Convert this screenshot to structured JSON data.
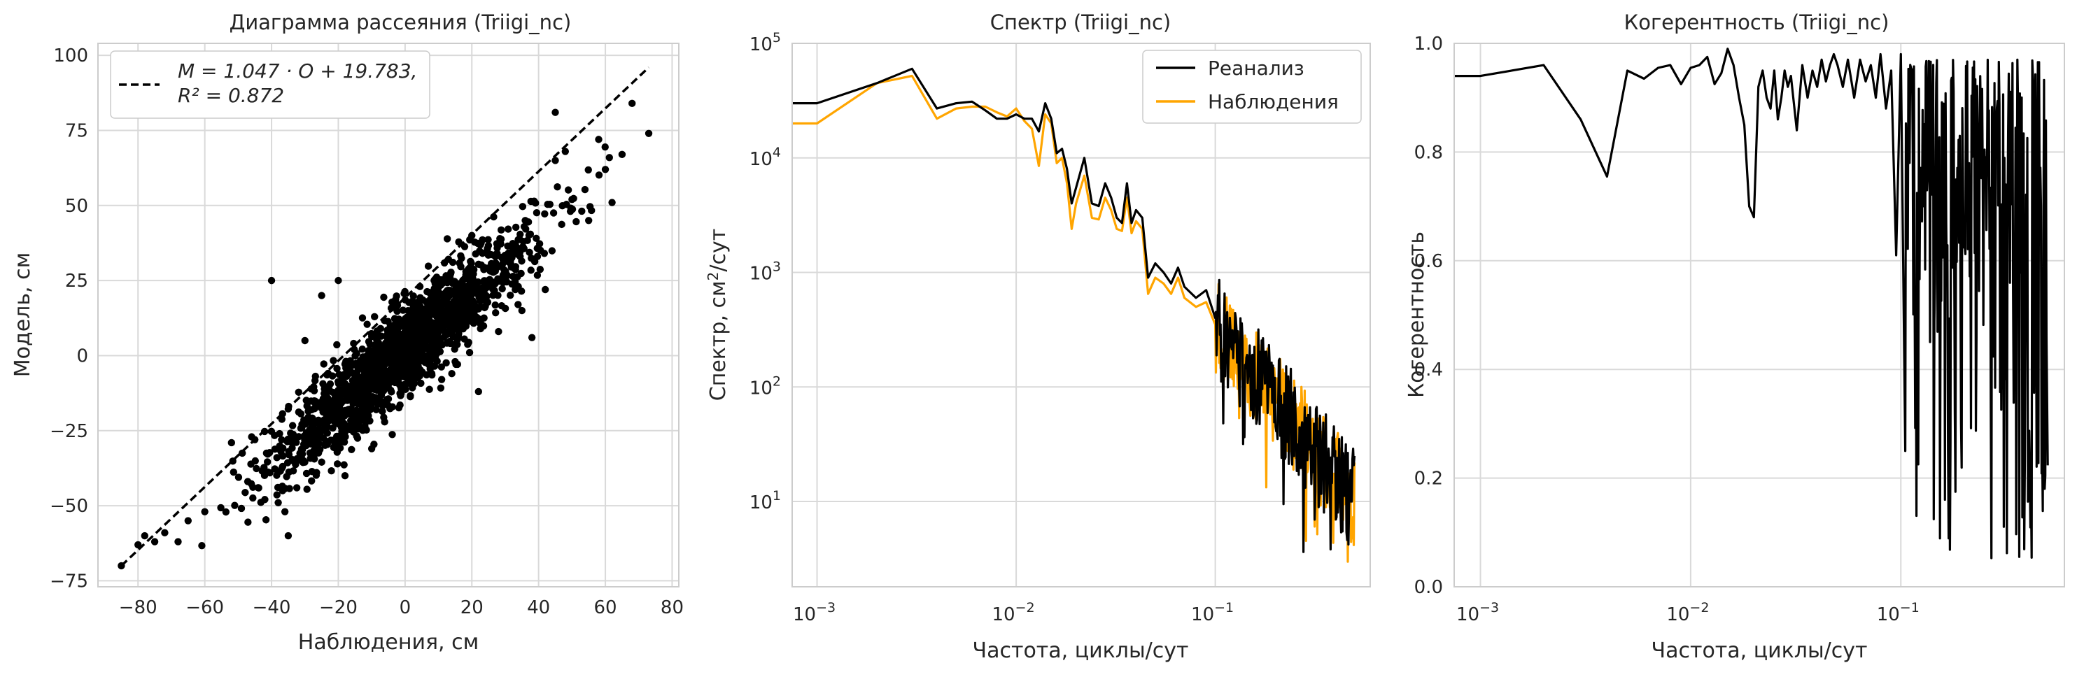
{
  "colors": {
    "model": "#000000",
    "observations": "#FFA500",
    "grid": "#D9D9D9",
    "spine": "#CCCCCC",
    "text": "#262626"
  },
  "chart_data": [
    {
      "type": "scatter",
      "title": "Диаграмма рассеяния (Triigi_nc)",
      "xlabel": "Наблюдения, см",
      "ylabel": "Модель, см",
      "xlim": [
        -92,
        82
      ],
      "ylim": [
        -77,
        104
      ],
      "xticks": [
        "−80",
        "−60",
        "−40",
        "−20",
        "0",
        "20",
        "40",
        "60",
        "80"
      ],
      "yticks": [
        "−75",
        "−50",
        "−25",
        "0",
        "25",
        "50",
        "75",
        "100"
      ],
      "grid": true,
      "legend": {
        "position": "top-left",
        "line1": "M = 1.047 · O + 19.783,",
        "line2": "R² = 0.872"
      },
      "fit": {
        "slope": 1.047,
        "intercept": 19.783,
        "r2": 0.872,
        "x_range": [
          -85,
          73
        ]
      },
      "point_model": {
        "count": 1800,
        "residual_sd": 7.5,
        "x_center": 0,
        "x_sd": 19
      },
      "points": [
        [
          -85,
          -70
        ],
        [
          -80,
          -63
        ],
        [
          -78,
          -60
        ],
        [
          -75,
          -62
        ],
        [
          -72,
          -59
        ],
        [
          -68,
          -62
        ],
        [
          -65,
          -55
        ],
        [
          -60,
          -52
        ],
        [
          -52,
          -29
        ],
        [
          -45,
          -28
        ],
        [
          -44,
          -44
        ],
        [
          -40,
          25
        ],
        [
          -38,
          -49
        ],
        [
          -36,
          -52
        ],
        [
          -35,
          -60
        ],
        [
          -30,
          5
        ],
        [
          -28,
          -24
        ],
        [
          -25,
          20
        ],
        [
          -20,
          25
        ],
        [
          -18,
          -40
        ],
        [
          -10,
          -31
        ],
        [
          0,
          8
        ],
        [
          8,
          -6
        ],
        [
          14,
          -6
        ],
        [
          15,
          -2
        ],
        [
          18,
          23
        ],
        [
          20,
          40
        ],
        [
          22,
          -12
        ],
        [
          28,
          8
        ],
        [
          35,
          15
        ],
        [
          36,
          45
        ],
        [
          38,
          6
        ],
        [
          45,
          81
        ],
        [
          42,
          22
        ],
        [
          45,
          65
        ],
        [
          48,
          68
        ],
        [
          50,
          52
        ],
        [
          55,
          45
        ],
        [
          58,
          72
        ],
        [
          60,
          62
        ],
        [
          62,
          51
        ],
        [
          65,
          67
        ],
        [
          68,
          84
        ],
        [
          73,
          74
        ]
      ]
    },
    {
      "type": "line",
      "title": "Спектр (Triigi_nc)",
      "xlabel": "Частота, циклы/сут",
      "ylabel": "Спектр, см²/сут",
      "xscale": "log",
      "yscale": "log",
      "xlim": [
        0.00075,
        0.6
      ],
      "ylim": [
        1.8,
        100000
      ],
      "xticks": [
        {
          "base": "10",
          "exp": "−3",
          "value": 0.001
        },
        {
          "base": "10",
          "exp": "−2",
          "value": 0.01
        },
        {
          "base": "10",
          "exp": "−1",
          "value": 0.1
        }
      ],
      "yticks": [
        {
          "base": "10",
          "exp": "1",
          "value": 10
        },
        {
          "base": "10",
          "exp": "2",
          "value": 100
        },
        {
          "base": "10",
          "exp": "3",
          "value": 1000
        },
        {
          "base": "10",
          "exp": "4",
          "value": 10000
        },
        {
          "base": "10",
          "exp": "5",
          "value": 100000
        }
      ],
      "grid": true,
      "legend": {
        "position": "top-right"
      },
      "series": [
        {
          "name": "Реанализ",
          "color": "#000000",
          "x": [
            0.00075,
            0.001,
            0.002,
            0.003,
            0.004,
            0.005,
            0.006,
            0.007,
            0.008,
            0.009,
            0.01,
            0.011,
            0.012,
            0.013,
            0.014,
            0.015,
            0.016,
            0.017,
            0.018,
            0.019,
            0.02,
            0.022,
            0.024,
            0.026,
            0.028,
            0.03,
            0.032,
            0.034,
            0.036,
            0.038,
            0.04,
            0.043,
            0.046,
            0.05,
            0.055,
            0.06,
            0.065,
            0.07,
            0.08,
            0.09,
            0.1
          ],
          "y": [
            30000,
            30000,
            45000,
            60000,
            27000,
            30000,
            31000,
            26000,
            22000,
            22000,
            24000,
            22000,
            22000,
            17000,
            30000,
            22000,
            11000,
            12000,
            8000,
            4000,
            5500,
            10000,
            4000,
            3800,
            6000,
            4500,
            3000,
            2700,
            6000,
            2700,
            3500,
            3000,
            900,
            1200,
            1000,
            800,
            1100,
            750,
            600,
            700,
            400
          ]
        },
        {
          "name": "Наблюдения",
          "color": "#FFA500",
          "x": [
            0.00075,
            0.001,
            0.002,
            0.003,
            0.004,
            0.005,
            0.006,
            0.007,
            0.008,
            0.009,
            0.01,
            0.011,
            0.012,
            0.013,
            0.014,
            0.015,
            0.016,
            0.017,
            0.018,
            0.019,
            0.02,
            0.022,
            0.024,
            0.026,
            0.028,
            0.03,
            0.032,
            0.034,
            0.036,
            0.038,
            0.04,
            0.043,
            0.046,
            0.05,
            0.055,
            0.06,
            0.065,
            0.07,
            0.08,
            0.09,
            0.1
          ],
          "y": [
            20000,
            20000,
            45000,
            52000,
            22000,
            27000,
            28000,
            28000,
            25000,
            23000,
            27000,
            21000,
            18000,
            8500,
            24000,
            20000,
            9000,
            10000,
            6000,
            2400,
            4000,
            7000,
            3000,
            2900,
            4500,
            3500,
            2400,
            2300,
            4500,
            2200,
            2800,
            2400,
            650,
            900,
            800,
            650,
            900,
            600,
            500,
            550,
            350
          ]
        }
      ],
      "hf_trend": {
        "f_start": 0.1,
        "f_end": 0.5,
        "spectrum_start": 320,
        "spectrum_end": 9
      }
    },
    {
      "type": "line",
      "title": "Когерентность (Triigi_nc)",
      "xlabel": "Частота, циклы/сут",
      "ylabel": "Когерентность",
      "xscale": "log",
      "xlim": [
        0.00075,
        0.6
      ],
      "ylim": [
        0,
        1
      ],
      "xticks": [
        {
          "base": "10",
          "exp": "−3",
          "value": 0.001
        },
        {
          "base": "10",
          "exp": "−2",
          "value": 0.01
        },
        {
          "base": "10",
          "exp": "−1",
          "value": 0.1
        }
      ],
      "yticks": [
        "0.0",
        "0.2",
        "0.4",
        "0.6",
        "0.8",
        "1.0"
      ],
      "grid": true,
      "series": [
        {
          "color": "#000000",
          "x": [
            0.00075,
            0.001,
            0.002,
            0.003,
            0.004,
            0.005,
            0.006,
            0.007,
            0.008,
            0.009,
            0.01,
            0.011,
            0.012,
            0.013,
            0.014,
            0.015,
            0.016,
            0.017,
            0.018,
            0.019,
            0.02,
            0.021,
            0.022,
            0.023,
            0.024,
            0.025,
            0.026,
            0.027,
            0.028,
            0.029,
            0.03,
            0.032,
            0.034,
            0.036,
            0.038,
            0.04,
            0.042,
            0.044,
            0.046,
            0.048,
            0.05,
            0.053,
            0.056,
            0.06,
            0.064,
            0.068,
            0.072,
            0.076,
            0.08,
            0.085,
            0.09,
            0.095,
            0.1,
            0.105
          ],
          "y": [
            0.94,
            0.94,
            0.96,
            0.86,
            0.755,
            0.95,
            0.935,
            0.955,
            0.96,
            0.925,
            0.955,
            0.96,
            0.975,
            0.925,
            0.945,
            0.99,
            0.96,
            0.9,
            0.85,
            0.7,
            0.68,
            0.92,
            0.95,
            0.9,
            0.88,
            0.95,
            0.86,
            0.9,
            0.95,
            0.92,
            0.94,
            0.84,
            0.96,
            0.9,
            0.95,
            0.92,
            0.97,
            0.93,
            0.96,
            0.98,
            0.96,
            0.92,
            0.97,
            0.9,
            0.97,
            0.93,
            0.96,
            0.9,
            0.98,
            0.88,
            0.95,
            0.61,
            0.98,
            0.25
          ]
        }
      ],
      "hf_trend": {
        "f_start": 0.1,
        "f_end": 0.5,
        "mean": 0.8,
        "min": 0.05
      }
    }
  ]
}
